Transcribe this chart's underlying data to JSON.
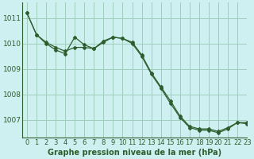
{
  "title": "Graphe pression niveau de la mer (hPa)",
  "background_color": "#cff0f0",
  "grid_color": "#a0ccbb",
  "line_color": "#2d5e2d",
  "xlim": [
    -0.5,
    23
  ],
  "ylim": [
    1006.3,
    1011.6
  ],
  "yticks": [
    1007,
    1008,
    1009,
    1010,
    1011
  ],
  "xticks": [
    0,
    1,
    2,
    3,
    4,
    5,
    6,
    7,
    8,
    9,
    10,
    11,
    12,
    13,
    14,
    15,
    16,
    17,
    18,
    19,
    20,
    21,
    22,
    23
  ],
  "line1_x": [
    0,
    1,
    2,
    3,
    4,
    5,
    6,
    7,
    8,
    9,
    10,
    11,
    12,
    13,
    14,
    15,
    16,
    17,
    18,
    19,
    20,
    21,
    22,
    23
  ],
  "line1_y": [
    1011.2,
    1010.35,
    1010.05,
    1009.85,
    1009.7,
    1009.85,
    1009.85,
    1009.8,
    1010.05,
    1010.25,
    1010.2,
    1010.05,
    1009.55,
    1008.85,
    1008.3,
    1007.75,
    1007.15,
    1006.75,
    1006.65,
    1006.65,
    1006.55,
    1006.7,
    1006.9,
    1006.9
  ],
  "line2_x": [
    0,
    1,
    2,
    3,
    4,
    5,
    6,
    7,
    8,
    9,
    10,
    11,
    12,
    13,
    14,
    15,
    16,
    17,
    18,
    19,
    20,
    21,
    22,
    23
  ],
  "line2_y": [
    1011.2,
    1010.35,
    1010.0,
    1009.75,
    1009.6,
    1010.25,
    1009.95,
    1009.8,
    1010.1,
    1010.25,
    1010.2,
    1010.0,
    1009.5,
    1008.8,
    1008.25,
    1007.65,
    1007.1,
    1006.7,
    1006.6,
    1006.6,
    1006.5,
    1006.65,
    1006.9,
    1006.85
  ],
  "xlabel_fontsize": 7,
  "tick_fontsize": 6
}
